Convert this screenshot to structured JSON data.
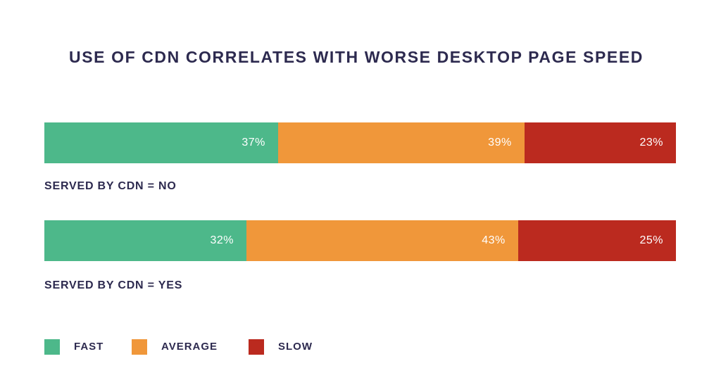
{
  "chart_data": {
    "type": "bar",
    "orientation": "horizontal",
    "stacked": true,
    "title": "USE OF CDN CORRELATES WITH WORSE DESKTOP PAGE SPEED",
    "categories": [
      "SERVED BY CDN = NO",
      "SERVED BY CDN = YES"
    ],
    "series": [
      {
        "name": "FAST",
        "color": "#4db88a",
        "values": [
          37,
          32
        ],
        "labels": [
          "37%",
          "32%"
        ]
      },
      {
        "name": "AVERAGE",
        "color": "#f0973a",
        "values": [
          39,
          43
        ],
        "labels": [
          "39%",
          "43%"
        ]
      },
      {
        "name": "SLOW",
        "color": "#bb2a1f",
        "values": [
          23,
          25
        ],
        "labels": [
          "23%",
          "25%"
        ]
      }
    ],
    "xlim": [
      0,
      100
    ],
    "grid": false,
    "legend": "bottom-left"
  }
}
